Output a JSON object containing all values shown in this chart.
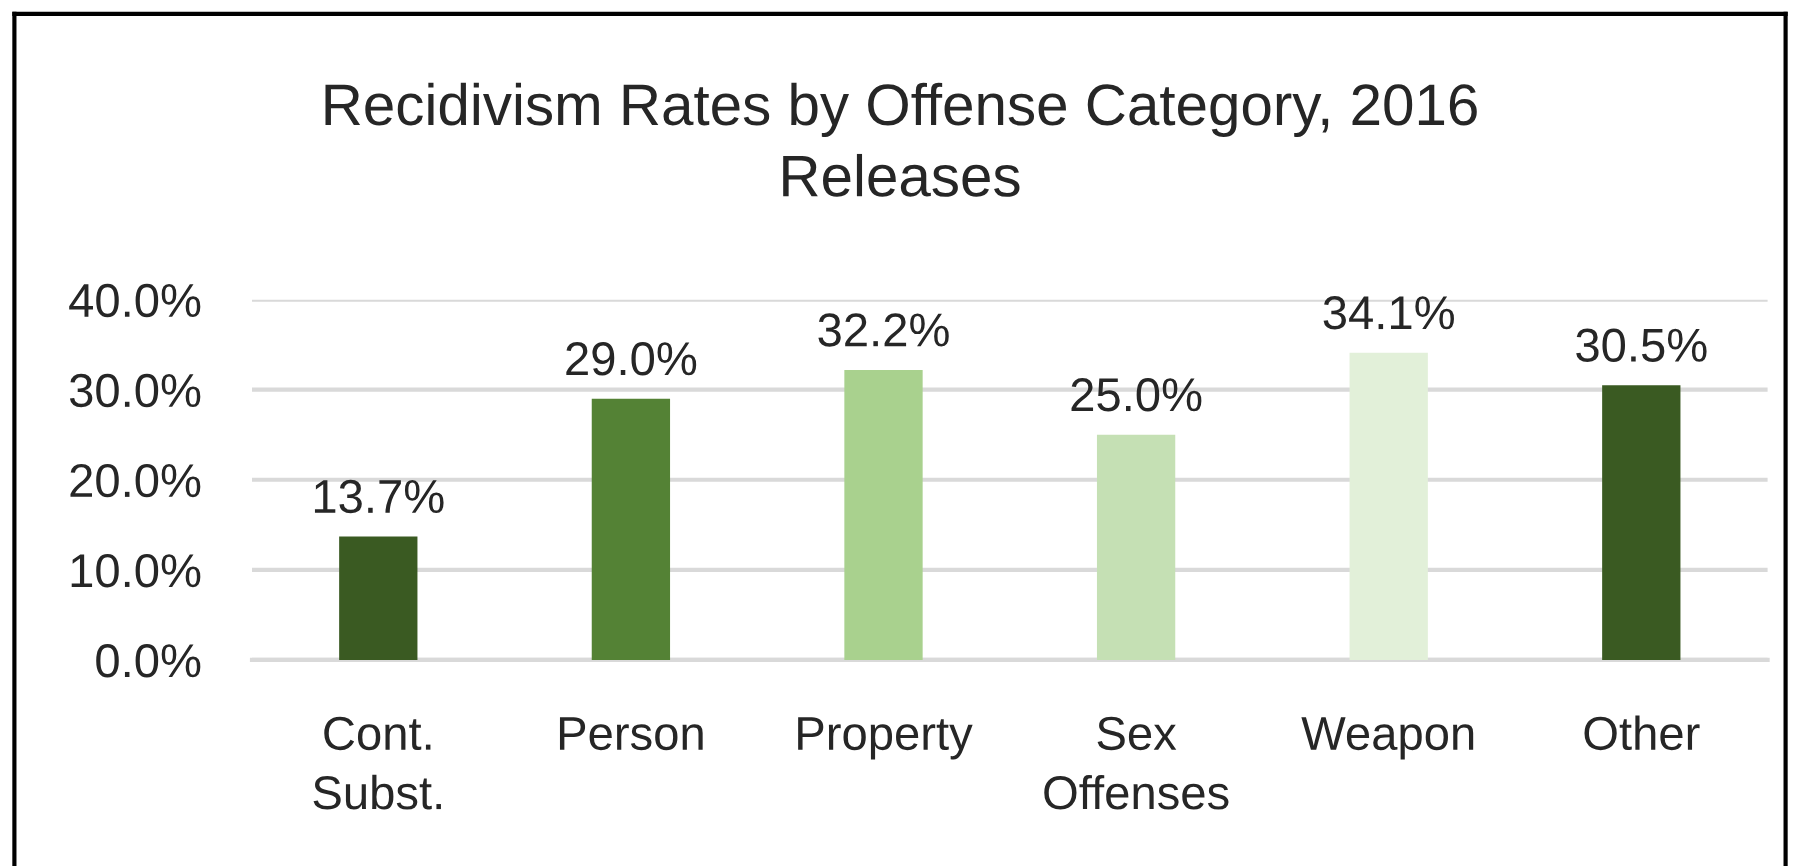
{
  "chart_data": {
    "type": "bar",
    "title": "Recidivism Rates by Offense Category, 2016\nReleases",
    "categories": [
      "Cont.\nSubst.",
      "Person",
      "Property",
      "Sex\nOffenses",
      "Weapon",
      "Other"
    ],
    "values": [
      13.7,
      29.0,
      32.2,
      25.0,
      34.1,
      30.5
    ],
    "colors": [
      "#3a5a22",
      "#548235",
      "#a9d18e",
      "#c5e0b4",
      "#e2f0d9",
      "#3a5a22"
    ],
    "value_labels": [
      "13.7%",
      "29.0%",
      "32.2%",
      "25.0%",
      "34.1%",
      "30.5%"
    ],
    "ylim": [
      0,
      40
    ],
    "yticks": [
      {
        "value": 0,
        "label": "0.0%"
      },
      {
        "value": 10,
        "label": "10.0%"
      },
      {
        "value": 20,
        "label": "20.0%"
      },
      {
        "value": 30,
        "label": "30.0%"
      },
      {
        "value": 40,
        "label": "40.0%"
      }
    ],
    "grid": "y"
  }
}
